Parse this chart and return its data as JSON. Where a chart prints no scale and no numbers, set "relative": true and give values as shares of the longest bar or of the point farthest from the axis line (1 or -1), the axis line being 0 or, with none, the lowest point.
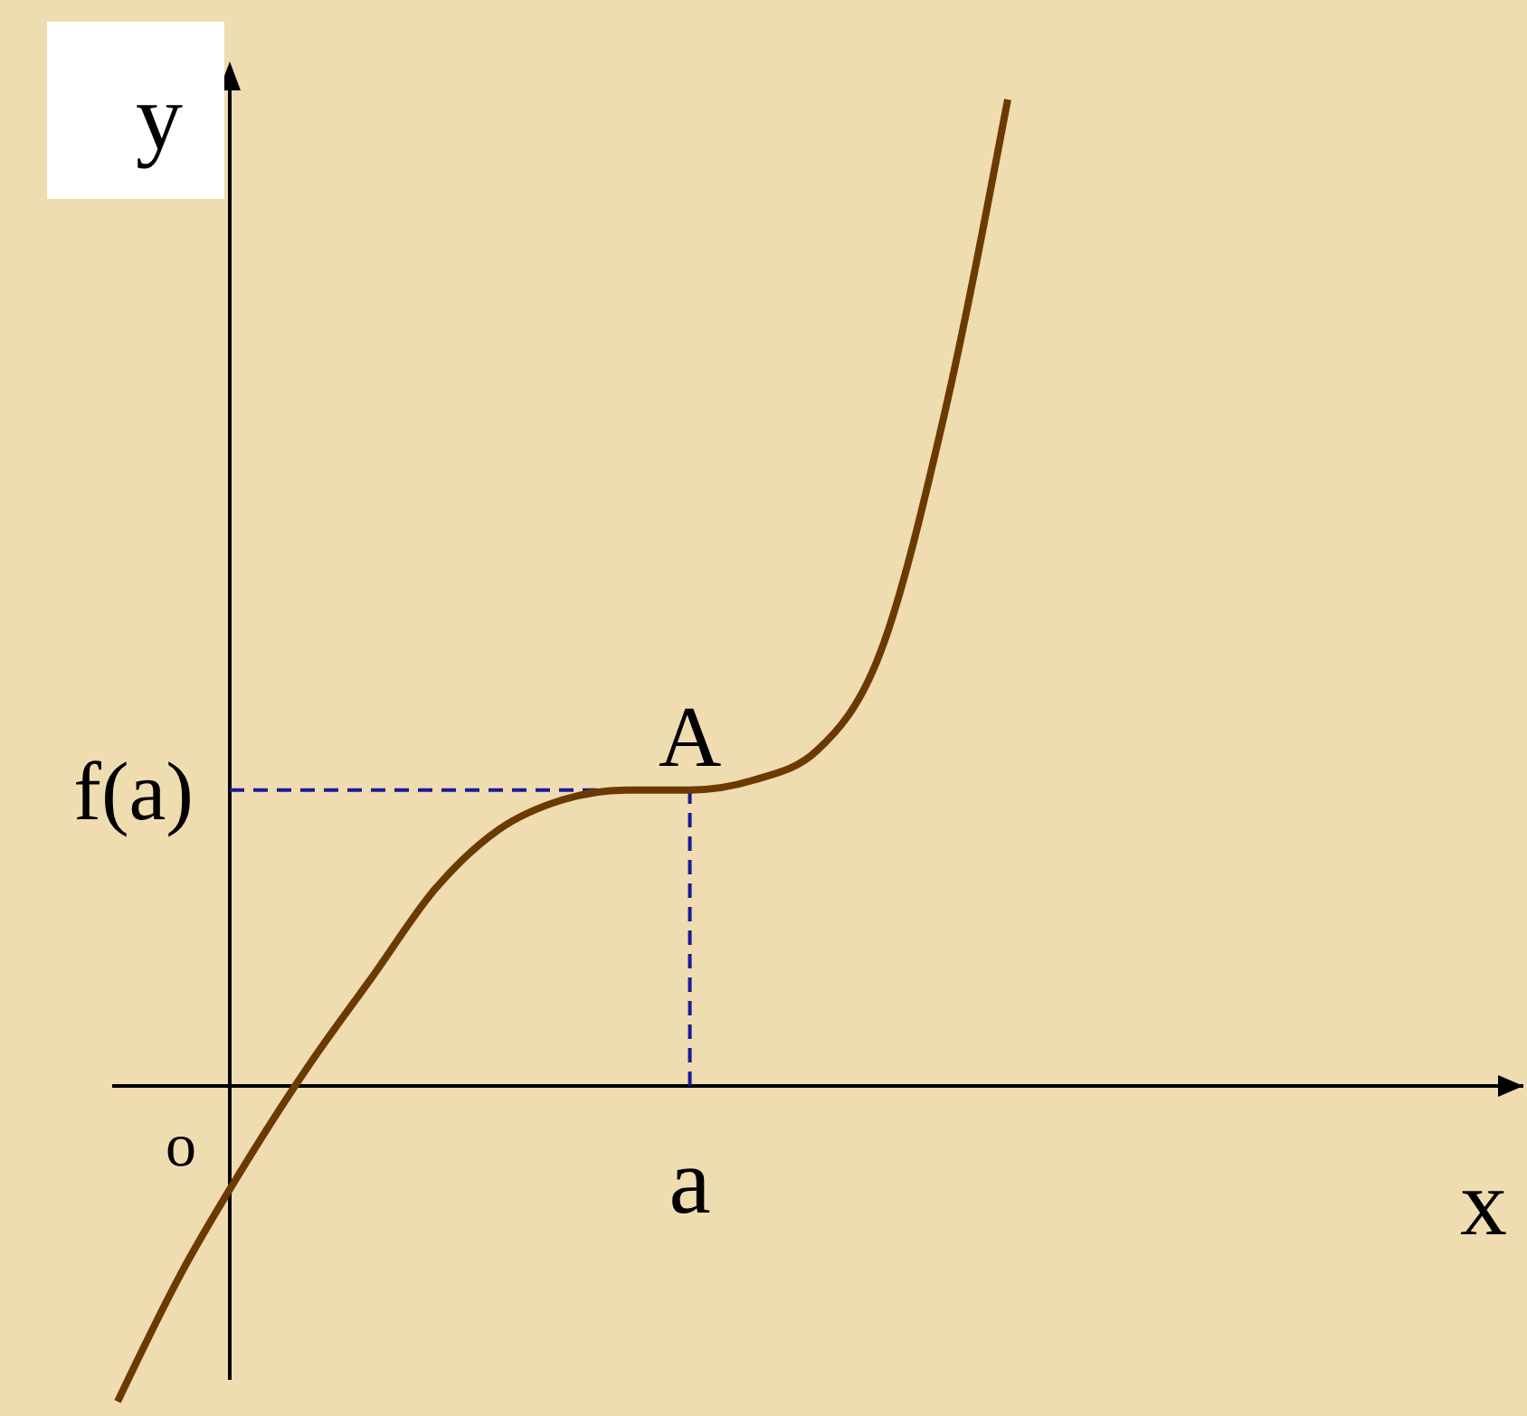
{
  "chart_data": {
    "type": "line",
    "xlabel": "x",
    "ylabel": "y",
    "relative": true,
    "categories": [
      null,
      null,
      null,
      null,
      null,
      null,
      null,
      null,
      null,
      null,
      null,
      null,
      null,
      null,
      null
    ],
    "series": [
      {
        "color": "#6b3a00",
        "values": [
          -0.32,
          -0.19,
          -0.08,
          0.02,
          0.11,
          0.2,
          0.26,
          0.29,
          0.3,
          0.3,
          0.31,
          0.34,
          0.44,
          0.68,
          1
        ]
      }
    ],
    "ref_lines": [
      {
        "axis": "y",
        "value": 0.3,
        "label": "f(a)",
        "color": "#1a1a9a",
        "line_style": "dashed"
      }
    ],
    "annotations": [
      "A",
      "a",
      "o"
    ],
    "marker": "none",
    "line_style": "solid"
  }
}
